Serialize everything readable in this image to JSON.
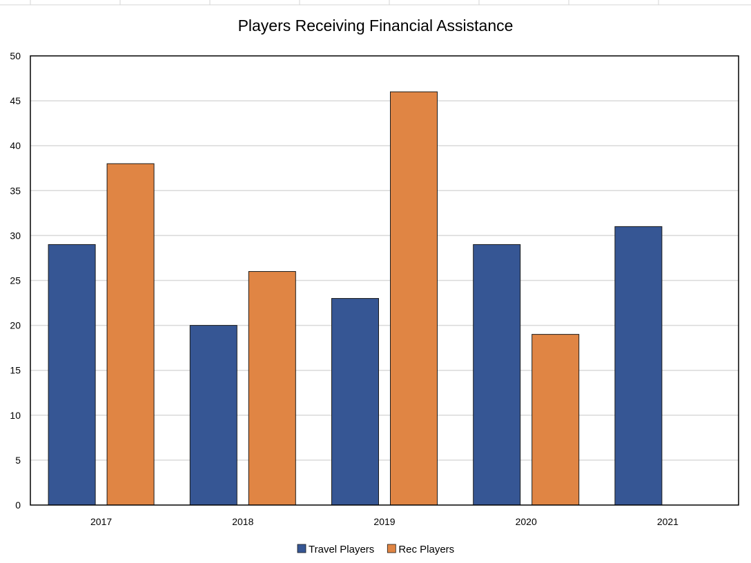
{
  "chart_data": {
    "type": "bar",
    "title": "Players Receiving Financial Assistance",
    "xlabel": "",
    "ylabel": "",
    "categories": [
      "2017",
      "2018",
      "2019",
      "2020",
      "2021"
    ],
    "series": [
      {
        "name": "Travel Players",
        "color": "#365694",
        "values": [
          29,
          20,
          23,
          29,
          31
        ]
      },
      {
        "name": "Rec Players",
        "color": "#E08544",
        "values": [
          38,
          26,
          46,
          19,
          null
        ]
      }
    ],
    "ylim": [
      0,
      50
    ],
    "yticks": [
      0,
      5,
      10,
      15,
      20,
      25,
      30,
      35,
      40,
      45,
      50
    ],
    "grid": true,
    "legend": "bottom"
  }
}
